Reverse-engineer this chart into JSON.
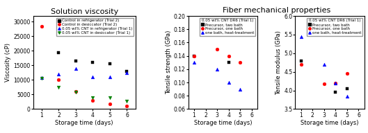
{
  "plot1": {
    "title": "Solution viscosity",
    "xlabel": "Storage time (days)",
    "ylabel": "Viscosity (cP)",
    "xlim": [
      0.5,
      6.5
    ],
    "ylim": [
      0,
      32000
    ],
    "yticks": [
      0,
      5000,
      10000,
      15000,
      20000,
      25000,
      30000
    ],
    "series": [
      {
        "label": "Control in refrigerator (Trial 2)",
        "color": "black",
        "marker": "s",
        "x": [
          2,
          3,
          4,
          5,
          6
        ],
        "y": [
          19500,
          16500,
          16000,
          15500,
          13000
        ]
      },
      {
        "label": "Control in desiccator (Trial 2)",
        "color": "red",
        "marker": "o",
        "x": [
          1,
          2,
          3,
          4,
          5,
          6
        ],
        "y": [
          28500,
          10000,
          6000,
          3000,
          1800,
          1000
        ]
      },
      {
        "label": "0.05 wt% CNT in refrigerator (Trial 1)",
        "color": "blue",
        "marker": "^",
        "x": [
          1,
          2,
          3,
          4,
          5,
          6
        ],
        "y": [
          10800,
          12000,
          13800,
          11000,
          11000,
          12500
        ]
      },
      {
        "label": "0.05 wt% CNT in desiccator (Trial 1)",
        "color": "green",
        "marker": "v",
        "x": [
          1,
          2,
          3,
          4,
          5,
          6
        ],
        "y": [
          10500,
          7500,
          5800,
          3800,
          3800,
          2800
        ]
      }
    ]
  },
  "plot2": {
    "xlabel": "Storage time (days)",
    "ylabel": "Tensile strength (GPa)",
    "xlim": [
      0.5,
      6.5
    ],
    "ylim": [
      0.06,
      0.2
    ],
    "yticks": [
      0.06,
      0.08,
      0.1,
      0.12,
      0.14,
      0.16,
      0.18,
      0.2
    ],
    "legend_title": "0.05 wt% CNT DR6 (Trial 1)",
    "series": [
      {
        "label": "Precursor, two bath",
        "color": "black",
        "marker": "s",
        "x": [
          1,
          4
        ],
        "y": [
          0.14,
          0.13
        ]
      },
      {
        "label": "Precursor, one bath",
        "color": "red",
        "marker": "o",
        "x": [
          1,
          3,
          4,
          5
        ],
        "y": [
          0.14,
          0.15,
          0.14,
          0.13
        ]
      },
      {
        "label": "one bath, heat-treatment",
        "color": "blue",
        "marker": "^",
        "x": [
          1,
          3,
          4,
          5
        ],
        "y": [
          0.13,
          0.12,
          0.1,
          0.09
        ]
      }
    ]
  },
  "plot3": {
    "xlabel": "Storage time (days)",
    "ylabel": "Tensile modulus (GPa)",
    "xlim": [
      0.5,
      6.5
    ],
    "ylim": [
      3.5,
      6.0
    ],
    "yticks": [
      3.5,
      4.0,
      4.5,
      5.0,
      5.5,
      6.0
    ],
    "legend_title": "0.05 wt% CNT DR6 (Trial 1)",
    "series": [
      {
        "label": "Precursor, two bath",
        "color": "black",
        "marker": "s",
        "x": [
          1,
          4,
          5
        ],
        "y": [
          4.8,
          3.95,
          4.05
        ]
      },
      {
        "label": "Precursor, one bath",
        "color": "red",
        "marker": "o",
        "x": [
          1,
          3,
          4,
          5
        ],
        "y": [
          4.7,
          4.18,
          4.2,
          4.45
        ]
      },
      {
        "label": "one bath, heat-treatment",
        "color": "blue",
        "marker": "^",
        "x": [
          1,
          3,
          4,
          5
        ],
        "y": [
          5.45,
          4.7,
          4.2,
          3.85
        ]
      }
    ]
  },
  "fiber_title": "Fiber mechanical properties",
  "bg_color": "#ffffff",
  "tick_fontsize": 5.5,
  "label_fontsize": 6.0,
  "title_fontsize": 8.0,
  "fiber_title_fontsize": 8.0,
  "legend_fontsize": 4.0,
  "legend_title_fontsize": 4.0,
  "marker_size": 12
}
